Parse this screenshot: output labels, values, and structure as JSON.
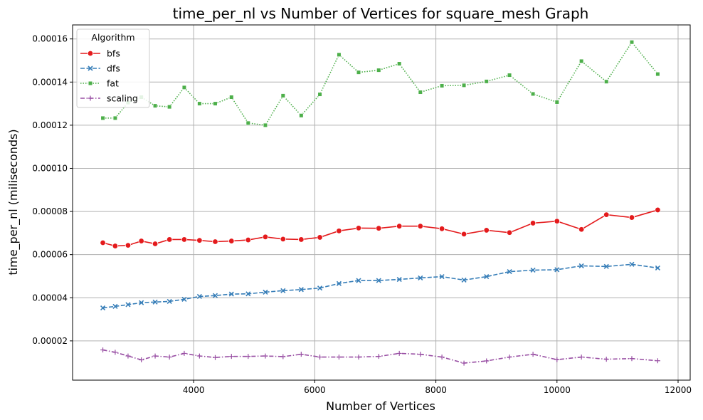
{
  "chart_data": {
    "type": "line",
    "title": "time_per_nl vs Number of Vertices for square_mesh Graph",
    "xlabel": "Number of Vertices",
    "ylabel": "time_per_nl (miliseconds)",
    "xlim": [
      2000,
      12200
    ],
    "ylim": [
      1.8e-06,
      0.0001665
    ],
    "xticks": [
      4000,
      6000,
      8000,
      10000,
      12000
    ],
    "xtick_labels": [
      "4000",
      "6000",
      "8000",
      "10000",
      "12000"
    ],
    "yticks": [
      2e-05,
      4e-05,
      6e-05,
      8e-05,
      0.0001,
      0.00012,
      0.00014,
      0.00016
    ],
    "ytick_labels": [
      "0.00002",
      "0.00004",
      "0.00006",
      "0.00008",
      "0.00010",
      "0.00012",
      "0.00014",
      "0.00016"
    ],
    "grid": true,
    "legend": {
      "title": "Algorithm",
      "position": "top-left"
    },
    "x": [
      2500,
      2704,
      2916,
      3136,
      3364,
      3600,
      3844,
      4096,
      4356,
      4624,
      4900,
      5184,
      5476,
      5776,
      6084,
      6400,
      6724,
      7056,
      7396,
      7744,
      8100,
      8464,
      8836,
      9216,
      9604,
      10000,
      10404,
      10816,
      11236,
      11664
    ],
    "series": [
      {
        "name": "bfs",
        "color": "#e41a1c",
        "marker": "circle",
        "dash": "solid",
        "values": [
          6.55e-05,
          6.4e-05,
          6.43e-05,
          6.63e-05,
          6.5e-05,
          6.7e-05,
          6.7e-05,
          6.66e-05,
          6.6e-05,
          6.63e-05,
          6.68e-05,
          6.82e-05,
          6.72e-05,
          6.7e-05,
          6.8e-05,
          7.1e-05,
          7.23e-05,
          7.22e-05,
          7.32e-05,
          7.32e-05,
          7.2e-05,
          6.95e-05,
          7.13e-05,
          7.02e-05,
          7.46e-05,
          7.55e-05,
          7.17e-05,
          7.85e-05,
          7.72e-05,
          8.07e-05
        ]
      },
      {
        "name": "dfs",
        "color": "#377eb8",
        "marker": "x",
        "dash": "dashed",
        "values": [
          3.53e-05,
          3.6e-05,
          3.68e-05,
          3.77e-05,
          3.8e-05,
          3.83e-05,
          3.93e-05,
          4.06e-05,
          4.1e-05,
          4.17e-05,
          4.18e-05,
          4.26e-05,
          4.33e-05,
          4.38e-05,
          4.45e-05,
          4.66e-05,
          4.8e-05,
          4.8e-05,
          4.85e-05,
          4.92e-05,
          4.98e-05,
          4.82e-05,
          4.98e-05,
          5.21e-05,
          5.28e-05,
          5.3e-05,
          5.48e-05,
          5.45e-05,
          5.55e-05,
          5.38e-05
        ]
      },
      {
        "name": "fat",
        "color": "#4daf4a",
        "marker": "square",
        "dash": "dotted",
        "values": [
          0.0001233,
          0.0001233,
          0.0001305,
          0.000133,
          0.000129,
          0.0001285,
          0.0001375,
          0.00013,
          0.00013,
          0.000133,
          0.000121,
          0.00012,
          0.0001337,
          0.0001245,
          0.0001343,
          0.0001527,
          0.0001445,
          0.0001455,
          0.0001485,
          0.0001353,
          0.0001383,
          0.0001385,
          0.0001403,
          0.0001432,
          0.0001345,
          0.0001307,
          0.0001497,
          0.0001402,
          0.0001585,
          0.0001437
        ]
      },
      {
        "name": "scaling",
        "color": "#984ea3",
        "marker": "plus",
        "dash": "dashdot",
        "values": [
          1.58e-05,
          1.47e-05,
          1.3e-05,
          1.12e-05,
          1.3e-05,
          1.25e-05,
          1.42e-05,
          1.3e-05,
          1.23e-05,
          1.28e-05,
          1.28e-05,
          1.3e-05,
          1.27e-05,
          1.38e-05,
          1.25e-05,
          1.25e-05,
          1.25e-05,
          1.28e-05,
          1.42e-05,
          1.38e-05,
          1.25e-05,
          9.7e-06,
          1.07e-05,
          1.25e-05,
          1.38e-05,
          1.13e-05,
          1.25e-05,
          1.15e-05,
          1.18e-05,
          1.08e-05
        ]
      }
    ]
  }
}
